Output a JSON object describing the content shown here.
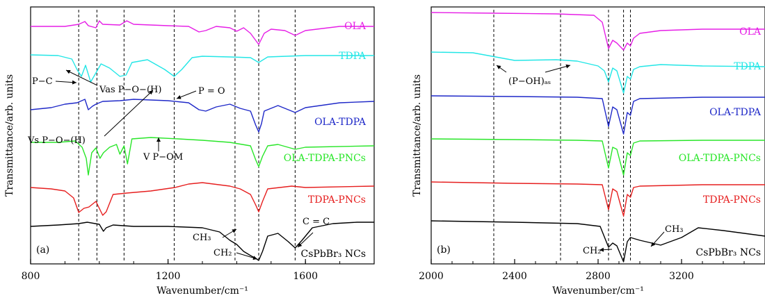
{
  "chart_data": [
    {
      "type": "line",
      "panel_label": "(a)",
      "xlabel": "Wavenumber/cm⁻¹",
      "ylabel": "Transmittance/arb. units",
      "xlim": [
        800,
        1800
      ],
      "x_ticks": [
        "800",
        "1200",
        "1600"
      ],
      "y_ticks": false,
      "grid": false,
      "vlines": [
        940,
        993,
        1072,
        1218,
        1395,
        1464,
        1570
      ],
      "annotations": [
        "P−C",
        "Vs P−O−(H)",
        "Vas P−O−(H)",
        "P = O",
        "V P−OM",
        "CH₃",
        "CH₂",
        "C = C"
      ],
      "series": [
        {
          "name": "OLA",
          "color": "#e61ee6",
          "points": [
            [
              800,
              38
            ],
            [
              900,
              38
            ],
            [
              940,
              35
            ],
            [
              958,
              31
            ],
            [
              968,
              37
            ],
            [
              990,
              40
            ],
            [
              1000,
              30
            ],
            [
              1010,
              35
            ],
            [
              1060,
              36
            ],
            [
              1080,
              30
            ],
            [
              1100,
              35
            ],
            [
              1200,
              37
            ],
            [
              1260,
              38
            ],
            [
              1290,
              46
            ],
            [
              1310,
              44
            ],
            [
              1340,
              38
            ],
            [
              1380,
              40
            ],
            [
              1400,
              45
            ],
            [
              1420,
              40
            ],
            [
              1440,
              48
            ],
            [
              1464,
              64
            ],
            [
              1480,
              48
            ],
            [
              1500,
              42
            ],
            [
              1540,
              44
            ],
            [
              1570,
              51
            ],
            [
              1600,
              44
            ],
            [
              1700,
              38
            ],
            [
              1800,
              38
            ]
          ]
        },
        {
          "name": "TDPA",
          "color": "#22e6e6",
          "points": [
            [
              800,
              79
            ],
            [
              880,
              80
            ],
            [
              920,
              85
            ],
            [
              935,
              100
            ],
            [
              948,
              110
            ],
            [
              960,
              94
            ],
            [
              975,
              118
            ],
            [
              990,
              105
            ],
            [
              1005,
              92
            ],
            [
              1030,
              98
            ],
            [
              1060,
              110
            ],
            [
              1078,
              108
            ],
            [
              1095,
              90
            ],
            [
              1140,
              86
            ],
            [
              1190,
              100
            ],
            [
              1218,
              110
            ],
            [
              1240,
              100
            ],
            [
              1270,
              83
            ],
            [
              1300,
              81
            ],
            [
              1380,
              82
            ],
            [
              1440,
              83
            ],
            [
              1464,
              90
            ],
            [
              1490,
              82
            ],
            [
              1600,
              80
            ],
            [
              1800,
              80
            ]
          ]
        },
        {
          "name": "OLA-TDPA",
          "color": "#1e28c8",
          "points": [
            [
              800,
              158
            ],
            [
              860,
              155
            ],
            [
              900,
              150
            ],
            [
              935,
              148
            ],
            [
              958,
              143
            ],
            [
              968,
              158
            ],
            [
              980,
              153
            ],
            [
              990,
              150
            ],
            [
              1010,
              146
            ],
            [
              1060,
              145
            ],
            [
              1100,
              143
            ],
            [
              1200,
              145
            ],
            [
              1260,
              148
            ],
            [
              1290,
              158
            ],
            [
              1310,
              160
            ],
            [
              1340,
              154
            ],
            [
              1380,
              150
            ],
            [
              1410,
              156
            ],
            [
              1440,
              160
            ],
            [
              1455,
              180
            ],
            [
              1464,
              190
            ],
            [
              1472,
              178
            ],
            [
              1480,
              160
            ],
            [
              1520,
              152
            ],
            [
              1570,
              162
            ],
            [
              1600,
              155
            ],
            [
              1700,
              148
            ],
            [
              1800,
              146
            ]
          ]
        },
        {
          "name": "OLA-TDPA-PNCs",
          "color": "#28e628",
          "points": [
            [
              800,
              205
            ],
            [
              880,
              205
            ],
            [
              930,
              203
            ],
            [
              950,
              212
            ],
            [
              962,
              228
            ],
            [
              968,
              252
            ],
            [
              978,
              220
            ],
            [
              990,
              213
            ],
            [
              1002,
              228
            ],
            [
              1012,
              220
            ],
            [
              1030,
              212
            ],
            [
              1050,
              208
            ],
            [
              1060,
              222
            ],
            [
              1072,
              210
            ],
            [
              1082,
              236
            ],
            [
              1095,
              200
            ],
            [
              1150,
              198
            ],
            [
              1230,
              200
            ],
            [
              1300,
              202
            ],
            [
              1380,
              205
            ],
            [
              1440,
              210
            ],
            [
              1455,
              230
            ],
            [
              1464,
              240
            ],
            [
              1475,
              225
            ],
            [
              1490,
              210
            ],
            [
              1520,
              208
            ],
            [
              1570,
              215
            ],
            [
              1600,
              212
            ],
            [
              1800,
              210
            ]
          ]
        },
        {
          "name": "TDPA-PNCs",
          "color": "#e61e1e",
          "points": [
            [
              800,
              270
            ],
            [
              860,
              272
            ],
            [
              900,
              275
            ],
            [
              925,
              285
            ],
            [
              940,
              306
            ],
            [
              955,
              300
            ],
            [
              970,
              298
            ],
            [
              990,
              290
            ],
            [
              1010,
              310
            ],
            [
              1020,
              305
            ],
            [
              1040,
              280
            ],
            [
              1080,
              278
            ],
            [
              1150,
              275
            ],
            [
              1220,
              270
            ],
            [
              1260,
              265
            ],
            [
              1300,
              263
            ],
            [
              1380,
              268
            ],
            [
              1410,
              272
            ],
            [
              1440,
              280
            ],
            [
              1455,
              295
            ],
            [
              1464,
              305
            ],
            [
              1475,
              290
            ],
            [
              1490,
              272
            ],
            [
              1560,
              268
            ],
            [
              1600,
              270
            ],
            [
              1800,
              268
            ]
          ]
        },
        {
          "name": "CsPbBr₃ NCs",
          "color": "#000000",
          "points": [
            [
              800,
              326
            ],
            [
              880,
              324
            ],
            [
              940,
              322
            ],
            [
              965,
              320
            ],
            [
              1000,
              323
            ],
            [
              1012,
              333
            ],
            [
              1020,
              328
            ],
            [
              1040,
              324
            ],
            [
              1100,
              326
            ],
            [
              1200,
              326
            ],
            [
              1300,
              328
            ],
            [
              1350,
              334
            ],
            [
              1380,
              346
            ],
            [
              1400,
              352
            ],
            [
              1420,
              362
            ],
            [
              1440,
              368
            ],
            [
              1455,
              372
            ],
            [
              1464,
              375
            ],
            [
              1475,
              362
            ],
            [
              1490,
              340
            ],
            [
              1520,
              336
            ],
            [
              1550,
              348
            ],
            [
              1570,
              357
            ],
            [
              1590,
              346
            ],
            [
              1620,
              328
            ],
            [
              1680,
              322
            ],
            [
              1750,
              320
            ],
            [
              1800,
              320
            ]
          ]
        }
      ]
    },
    {
      "type": "line",
      "panel_label": "(b)",
      "xlabel": "Wavenumber/cm⁻¹",
      "ylabel": "Transmittance/arb. units",
      "xlim": [
        2000,
        3600
      ],
      "x_ticks": [
        "2000",
        "2400",
        "2800",
        "3200"
      ],
      "y_ticks": false,
      "grid": false,
      "vlines": [
        2300,
        2620,
        2850,
        2922,
        2955
      ],
      "annotations": [
        "(P−OH)ₐₛ",
        "CH₃",
        "CH₂"
      ],
      "series": [
        {
          "name": "OLA",
          "color": "#e61ee6",
          "points": [
            [
              2000,
              18
            ],
            [
              2300,
              19
            ],
            [
              2600,
              20
            ],
            [
              2780,
              22
            ],
            [
              2820,
              32
            ],
            [
              2850,
              70
            ],
            [
              2870,
              58
            ],
            [
              2890,
              62
            ],
            [
              2922,
              72
            ],
            [
              2940,
              62
            ],
            [
              2955,
              66
            ],
            [
              2970,
              55
            ],
            [
              3000,
              48
            ],
            [
              3100,
              44
            ],
            [
              3300,
              42
            ],
            [
              3600,
              42
            ]
          ]
        },
        {
          "name": "TDPA",
          "color": "#22e6e6",
          "points": [
            [
              2000,
              75
            ],
            [
              2200,
              76
            ],
            [
              2400,
              87
            ],
            [
              2600,
              86
            ],
            [
              2700,
              88
            ],
            [
              2800,
              95
            ],
            [
              2830,
              102
            ],
            [
              2850,
              118
            ],
            [
              2870,
              98
            ],
            [
              2890,
              102
            ],
            [
              2922,
              134
            ],
            [
              2940,
              110
            ],
            [
              2955,
              114
            ],
            [
              2970,
              100
            ],
            [
              3000,
              96
            ],
            [
              3100,
              93
            ],
            [
              3300,
              95
            ],
            [
              3600,
              96
            ]
          ]
        },
        {
          "name": "OLA-TDPA",
          "color": "#1e28c8",
          "points": [
            [
              2000,
              138
            ],
            [
              2400,
              139
            ],
            [
              2700,
              140
            ],
            [
              2820,
              142
            ],
            [
              2850,
              182
            ],
            [
              2870,
              154
            ],
            [
              2890,
              158
            ],
            [
              2922,
              193
            ],
            [
              2940,
              162
            ],
            [
              2955,
              166
            ],
            [
              2970,
              146
            ],
            [
              3000,
              142
            ],
            [
              3300,
              140
            ],
            [
              3600,
              140
            ]
          ]
        },
        {
          "name": "OLA-TDPA-PNCs",
          "color": "#28e628",
          "points": [
            [
              2000,
              200
            ],
            [
              2400,
              201
            ],
            [
              2700,
              202
            ],
            [
              2820,
              203
            ],
            [
              2850,
              242
            ],
            [
              2870,
              212
            ],
            [
              2890,
              215
            ],
            [
              2922,
              252
            ],
            [
              2940,
              220
            ],
            [
              2955,
              224
            ],
            [
              2970,
              206
            ],
            [
              3000,
              203
            ],
            [
              3300,
              202
            ],
            [
              3600,
              202
            ]
          ]
        },
        {
          "name": "TDPA-PNCs",
          "color": "#e61e1e",
          "points": [
            [
              2000,
              262
            ],
            [
              2400,
              264
            ],
            [
              2700,
              265
            ],
            [
              2820,
              266
            ],
            [
              2850,
              302
            ],
            [
              2870,
              272
            ],
            [
              2890,
              276
            ],
            [
              2922,
              311
            ],
            [
              2940,
              280
            ],
            [
              2955,
              284
            ],
            [
              2970,
              270
            ],
            [
              3000,
              268
            ],
            [
              3300,
              266
            ],
            [
              3600,
              266
            ]
          ]
        },
        {
          "name": "CsPbBr₃ NCs",
          "color": "#000000",
          "points": [
            [
              2000,
              318
            ],
            [
              2400,
              320
            ],
            [
              2700,
              322
            ],
            [
              2810,
              326
            ],
            [
              2850,
              356
            ],
            [
              2870,
              350
            ],
            [
              2890,
              354
            ],
            [
              2922,
              377
            ],
            [
              2940,
              348
            ],
            [
              2955,
              342
            ],
            [
              3000,
              346
            ],
            [
              3100,
              353
            ],
            [
              3200,
              342
            ],
            [
              3280,
              328
            ],
            [
              3400,
              332
            ],
            [
              3600,
              340
            ]
          ]
        }
      ]
    }
  ]
}
